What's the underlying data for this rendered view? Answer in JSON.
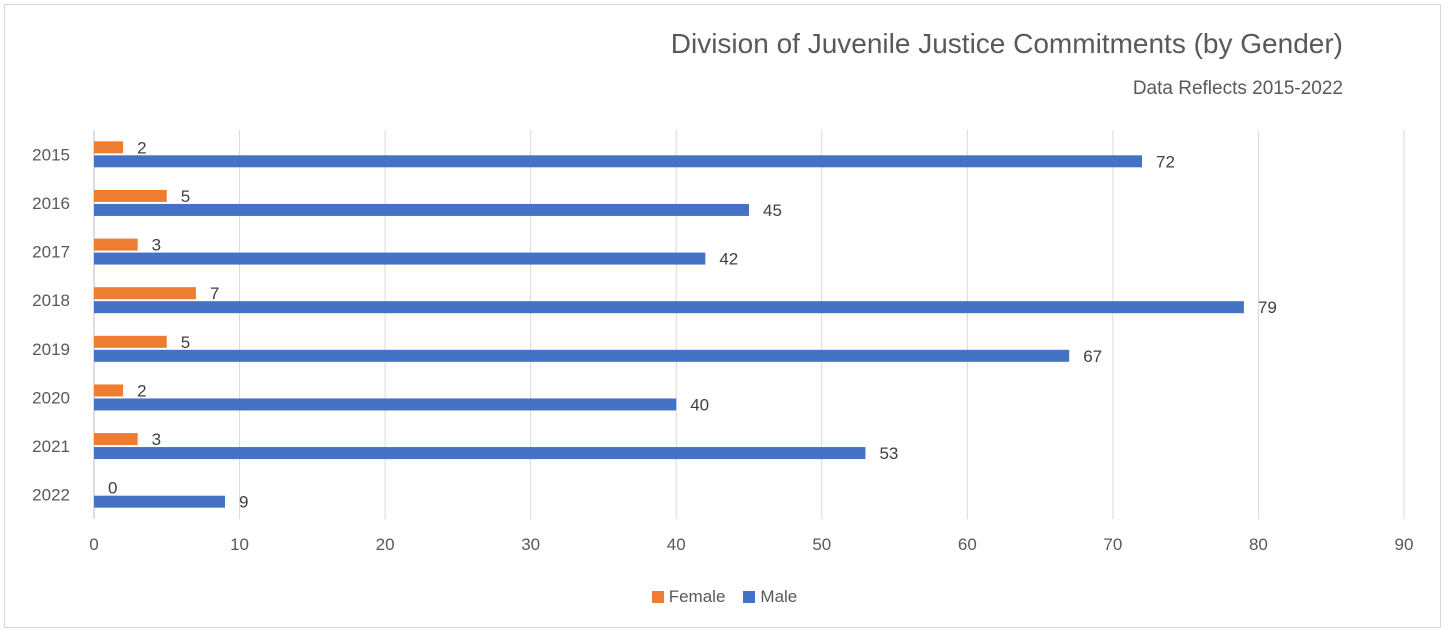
{
  "chart_data": {
    "type": "bar",
    "orientation": "horizontal",
    "title": "Division of Juvenile Justice Commitments (by Gender)",
    "subtitle": "Data Reflects 2015-2022",
    "categories": [
      "2015",
      "2016",
      "2017",
      "2018",
      "2019",
      "2020",
      "2021",
      "2022"
    ],
    "series": [
      {
        "name": "Female",
        "color": "#ed7d31",
        "values": [
          2,
          5,
          3,
          7,
          5,
          2,
          3,
          0
        ]
      },
      {
        "name": "Male",
        "color": "#4472c4",
        "values": [
          72,
          45,
          42,
          79,
          67,
          40,
          53,
          9
        ]
      }
    ],
    "xlim": [
      0,
      90
    ],
    "xticks": [
      0,
      10,
      20,
      30,
      40,
      50,
      60,
      70,
      80,
      90
    ],
    "xlabel": "",
    "ylabel": "",
    "grid": "vertical",
    "legend_position": "bottom",
    "data_labels": true
  }
}
